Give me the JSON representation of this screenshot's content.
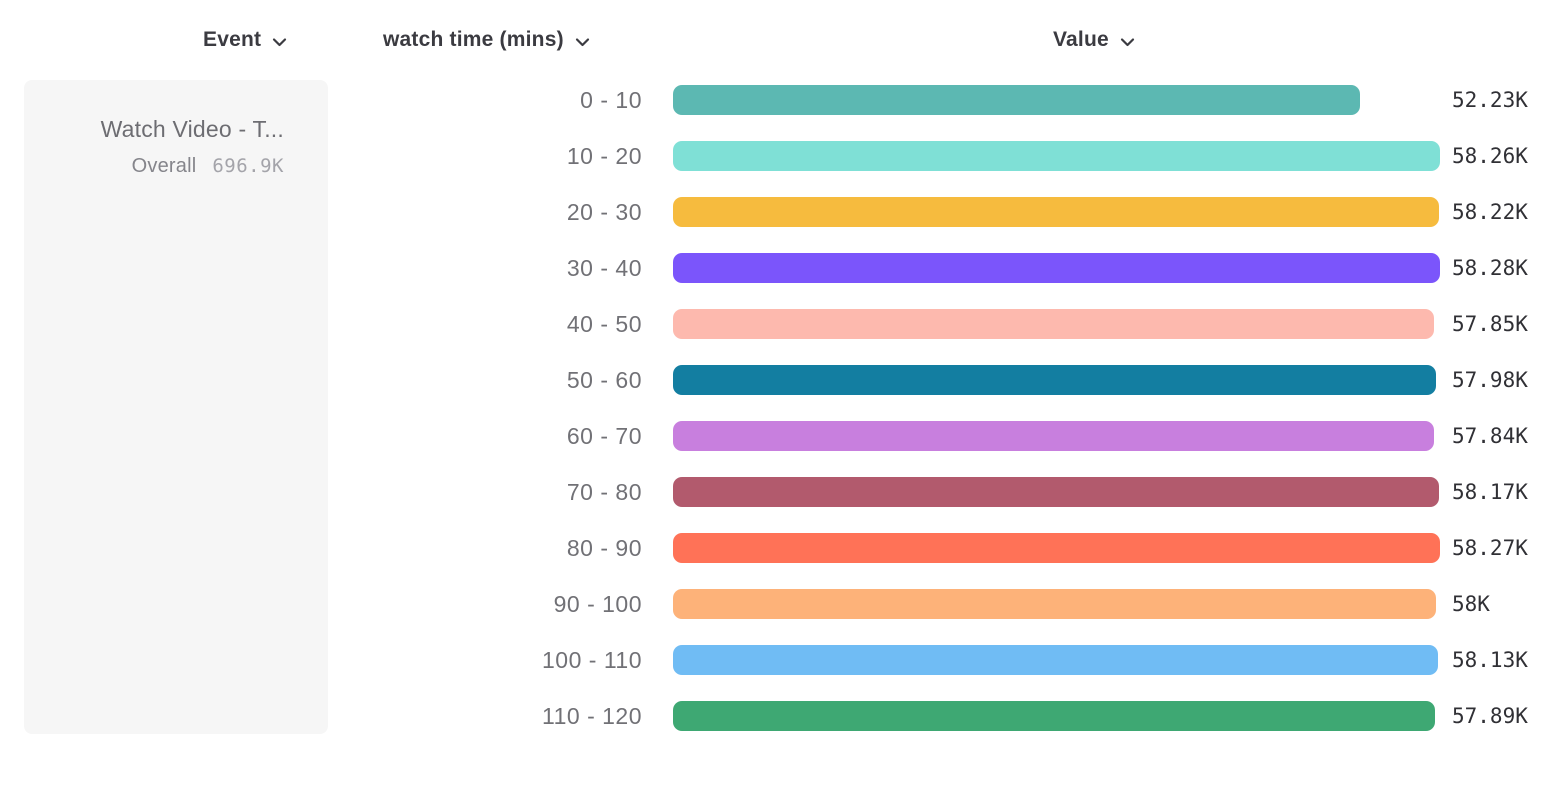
{
  "header": {
    "event_column": "Event",
    "breakdown_column": "watch time (mins)",
    "value_column": "Value"
  },
  "event_panel": {
    "event_name": "Watch Video - T...",
    "overall_label": "Overall",
    "overall_value": "696.9K"
  },
  "chart_data": {
    "type": "bar",
    "orientation": "horizontal",
    "title": "",
    "categories": [
      "0 - 10",
      "10 - 20",
      "20 - 30",
      "30 - 40",
      "40 - 50",
      "50 - 60",
      "60 - 70",
      "70 - 80",
      "80 - 90",
      "90 - 100",
      "100 - 110",
      "110 - 120"
    ],
    "values": [
      52230,
      58260,
      58220,
      58280,
      57850,
      57980,
      57840,
      58170,
      58270,
      58000,
      58130,
      57890
    ],
    "value_labels": [
      "52.23K",
      "58.26K",
      "58.22K",
      "58.28K",
      "57.85K",
      "57.98K",
      "57.84K",
      "58.17K",
      "58.27K",
      "58K",
      "58.13K",
      "57.89K"
    ],
    "bar_colors": [
      "#5CB8B2",
      "#7FE0D6",
      "#F6BB3E",
      "#7B55FB",
      "#FDB9AE",
      "#137EA1",
      "#C87FDE",
      "#B25A6D",
      "#FF7257",
      "#FDB279",
      "#70BCF4",
      "#3EA873"
    ],
    "xlim": [
      0,
      58280
    ],
    "grid": false,
    "legend": false
  },
  "colors": {
    "panel_bg": "#F6F6F6",
    "header_text": "#3B3B41",
    "category_text": "#717176",
    "value_text": "#303035"
  }
}
